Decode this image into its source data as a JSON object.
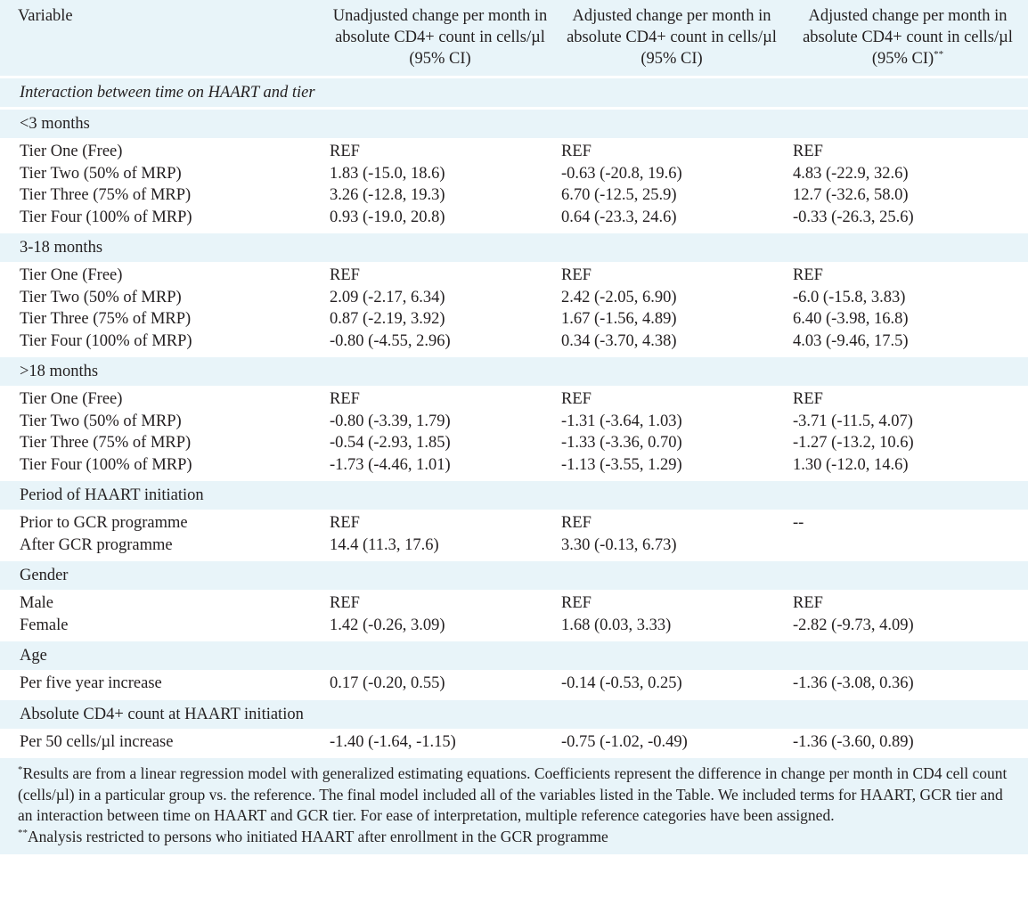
{
  "headers": {
    "variable": "Variable",
    "col1": "Unadjusted change per month in absolute CD4+ count in cells/µl (95% CI)",
    "col2": "Adjusted change per month in absolute CD4+ count in cells/µl (95% CI)",
    "col3": "Adjusted change per month in absolute CD4+ count in cells/µl (95% CI)",
    "col3_sup": "**"
  },
  "interaction_title": "Interaction between time on HAART and tier",
  "sections": [
    {
      "title": "<3 months",
      "rows": [
        {
          "label": "Tier One (Free)",
          "c1": "REF",
          "c2": "REF",
          "c3": "REF"
        },
        {
          "label": "Tier Two (50% of MRP)",
          "c1": "1.83 (-15.0, 18.6)",
          "c2": "-0.63 (-20.8, 19.6)",
          "c3": "4.83 (-22.9, 32.6)"
        },
        {
          "label": "Tier Three (75% of MRP)",
          "c1": "3.26 (-12.8, 19.3)",
          "c2": "6.70 (-12.5, 25.9)",
          "c3": "12.7 (-32.6, 58.0)"
        },
        {
          "label": "Tier Four (100% of MRP)",
          "c1": "0.93 (-19.0, 20.8)",
          "c2": "0.64 (-23.3, 24.6)",
          "c3": "-0.33 (-26.3, 25.6)"
        }
      ]
    },
    {
      "title": "3-18 months",
      "rows": [
        {
          "label": "Tier One (Free)",
          "c1": "REF",
          "c2": "REF",
          "c3": "REF"
        },
        {
          "label": "Tier Two (50% of MRP)",
          "c1": "2.09 (-2.17, 6.34)",
          "c2": "2.42 (-2.05, 6.90)",
          "c3": "-6.0 (-15.8, 3.83)"
        },
        {
          "label": "Tier Three (75% of MRP)",
          "c1": "0.87 (-2.19, 3.92)",
          "c2": "1.67 (-1.56, 4.89)",
          "c3": "6.40 (-3.98, 16.8)"
        },
        {
          "label": "Tier Four (100% of MRP)",
          "c1": "-0.80 (-4.55, 2.96)",
          "c2": "0.34 (-3.70, 4.38)",
          "c3": "4.03 (-9.46, 17.5)"
        }
      ]
    },
    {
      "title": ">18 months",
      "rows": [
        {
          "label": "Tier One (Free)",
          "c1": "REF",
          "c2": "REF",
          "c3": "REF"
        },
        {
          "label": "Tier Two (50% of MRP)",
          "c1": "-0.80 (-3.39, 1.79)",
          "c2": "-1.31 (-3.64, 1.03)",
          "c3": "-3.71 (-11.5, 4.07)"
        },
        {
          "label": "Tier Three (75% of MRP)",
          "c1": "-0.54 (-2.93, 1.85)",
          "c2": "-1.33 (-3.36, 0.70)",
          "c3": "-1.27 (-13.2, 10.6)"
        },
        {
          "label": "Tier Four (100% of MRP)",
          "c1": "-1.73 (-4.46, 1.01)",
          "c2": "-1.13 (-3.55, 1.29)",
          "c3": "1.30 (-12.0, 14.6)"
        }
      ]
    },
    {
      "title": "Period of HAART initiation",
      "rows": [
        {
          "label": "Prior to GCR programme",
          "c1": "REF",
          "c2": "REF",
          "c3": "--"
        },
        {
          "label": "After GCR programme",
          "c1": "14.4 (11.3, 17.6)",
          "c2": "3.30 (-0.13, 6.73)",
          "c3": ""
        }
      ]
    },
    {
      "title": "Gender",
      "rows": [
        {
          "label": "Male",
          "c1": "REF",
          "c2": "REF",
          "c3": "REF"
        },
        {
          "label": "Female",
          "c1": "1.42 (-0.26, 3.09)",
          "c2": "1.68 (0.03, 3.33)",
          "c3": "-2.82 (-9.73, 4.09)"
        }
      ]
    },
    {
      "title": "Age",
      "rows": [
        {
          "label": "Per five year increase",
          "c1": "0.17 (-0.20, 0.55)",
          "c2": "-0.14 (-0.53, 0.25)",
          "c3": "-1.36 (-3.08, 0.36)"
        }
      ]
    },
    {
      "title": "Absolute CD4+ count at HAART initiation",
      "rows": [
        {
          "label": "Per 50 cells/µl increase",
          "c1": "-1.40 (-1.64, -1.15)",
          "c2": "-0.75 (-1.02, -0.49)",
          "c3": "-1.36 (-3.60, 0.89)"
        }
      ]
    }
  ],
  "footnotes": {
    "note1_mark": "*",
    "note1": "Results are from a linear regression model with generalized estimating equations. Coefficients represent the difference in change per month in CD4 cell count (cells/µl) in a particular group vs. the reference. The final model included all of the variables listed in the Table. We included terms for HAART, GCR tier and an interaction between time on HAART and GCR tier. For ease of interpretation, multiple reference categories have been assigned.",
    "note2_mark": "**",
    "note2": "Analysis restricted to persons who initiated HAART after enrollment in the GCR programme"
  }
}
